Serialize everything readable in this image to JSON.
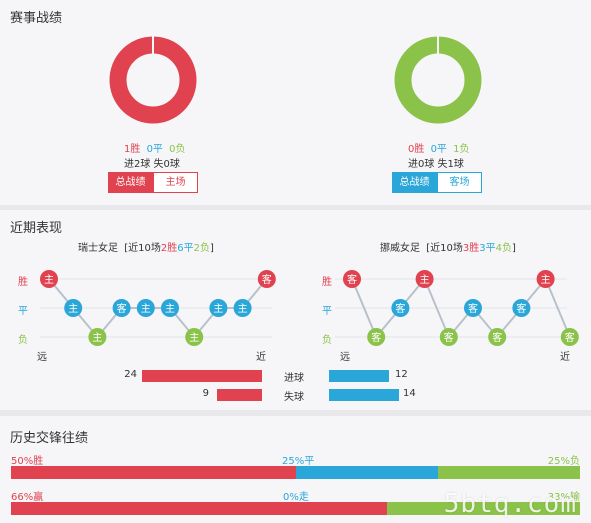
{
  "colors": {
    "win": "#e0424f",
    "draw": "#2aa6d8",
    "lose": "#8bc34a",
    "line": "#b8c0cc"
  },
  "record": {
    "title": "赛事战绩",
    "home": {
      "win_text": "1胜",
      "draw_text": "0平",
      "lose_text": "0负",
      "goals_text": "进2球 失0球",
      "tab_total": "总战绩",
      "tab_side": "主场",
      "donut": {
        "win": 1,
        "draw": 0,
        "lose": 0
      }
    },
    "away": {
      "win_text": "0胜",
      "draw_text": "0平",
      "lose_text": "1负",
      "goals_text": "进0球 失1球",
      "tab_total": "总战绩",
      "tab_side": "客场",
      "donut": {
        "win": 0,
        "draw": 0,
        "lose": 1
      }
    }
  },
  "recent": {
    "title": "近期表现",
    "row_labels": {
      "win": "胜",
      "draw": "平",
      "lose": "负"
    },
    "far": "远",
    "near": "近",
    "home": {
      "team": "瑞士女足",
      "prefix": "[近10场",
      "w": "2胜",
      "d": "6平",
      "l": "2负",
      "suffix": "]",
      "games": [
        {
          "r": "W",
          "v": "主"
        },
        {
          "r": "D",
          "v": "主"
        },
        {
          "r": "L",
          "v": "主"
        },
        {
          "r": "D",
          "v": "客"
        },
        {
          "r": "D",
          "v": "主"
        },
        {
          "r": "D",
          "v": "主"
        },
        {
          "r": "L",
          "v": "主"
        },
        {
          "r": "D",
          "v": "主"
        },
        {
          "r": "D",
          "v": "主"
        },
        {
          "r": "W",
          "v": "客"
        }
      ]
    },
    "away": {
      "team": "挪威女足",
      "prefix": "[近10场",
      "w": "3胜",
      "d": "3平",
      "l": "4负",
      "suffix": "]",
      "games": [
        {
          "r": "W",
          "v": "客"
        },
        {
          "r": "L",
          "v": "客"
        },
        {
          "r": "D",
          "v": "客"
        },
        {
          "r": "W",
          "v": "主"
        },
        {
          "r": "L",
          "v": "客"
        },
        {
          "r": "D",
          "v": "客"
        },
        {
          "r": "L",
          "v": "客"
        },
        {
          "r": "D",
          "v": "客"
        },
        {
          "r": "W",
          "v": "主"
        },
        {
          "r": "L",
          "v": "客"
        }
      ]
    },
    "goals": {
      "scored_label": "进球",
      "conceded_label": "失球",
      "home_scored": 24,
      "home_conceded": 9,
      "away_scored": 12,
      "away_conceded": 14,
      "home_scored_text": "24",
      "home_conceded_text": "9",
      "away_scored_text": "12",
      "away_conceded_text": "14"
    }
  },
  "history": {
    "title": "历史交锋往绩",
    "row1": {
      "left": "50%胜",
      "mid": "25%平",
      "right": "25%负",
      "parts": [
        50,
        25,
        25
      ]
    },
    "row2": {
      "left": "66%赢",
      "mid": "0%走",
      "right": "33%输",
      "parts": [
        66,
        0,
        34
      ]
    }
  },
  "watermark": "5btq.com"
}
